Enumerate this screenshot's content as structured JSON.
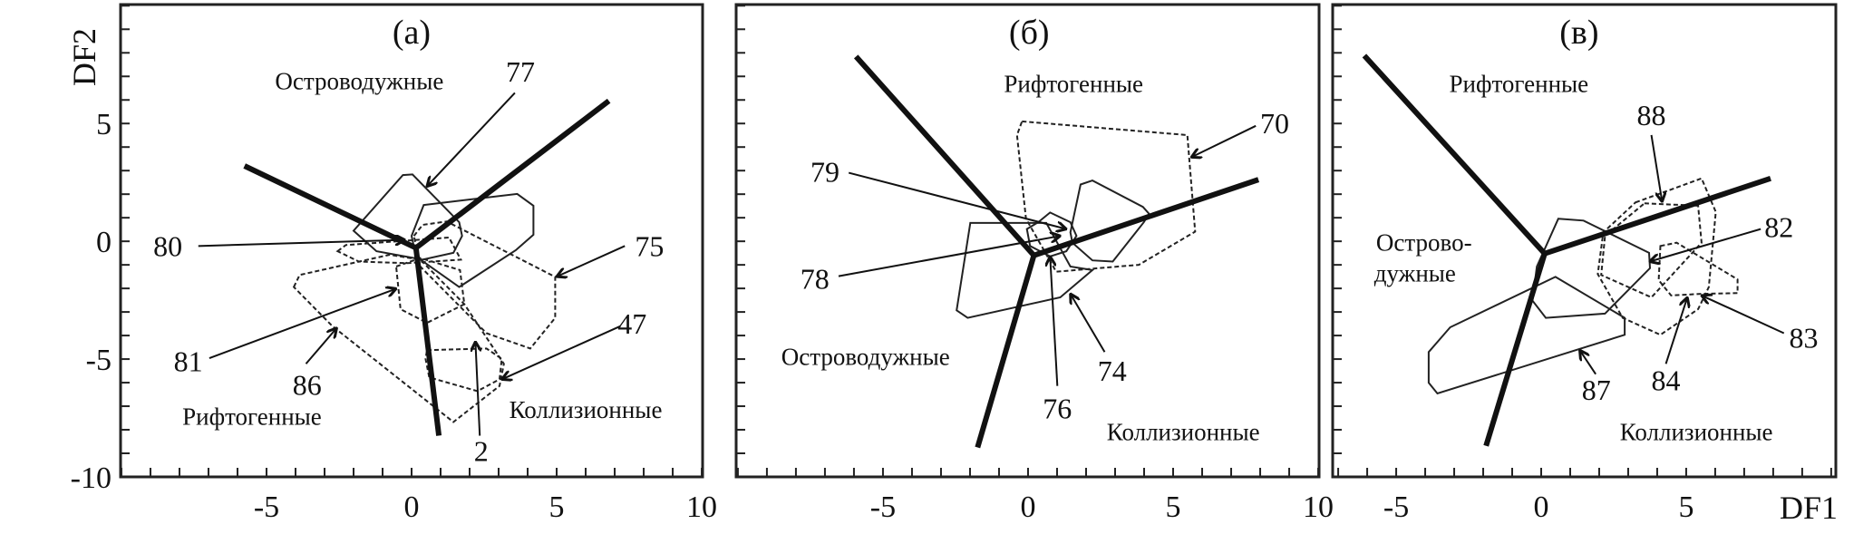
{
  "chart_data": [
    {
      "type": "scatter",
      "panel": "a",
      "title": "(a)",
      "xlabel": "",
      "ylabel": "DF2",
      "xlim": [
        -10.03,
        10.03
      ],
      "ylim": [
        -10,
        10.05
      ],
      "x_tick_labels": [
        {
          "value": -5,
          "text": "-5"
        },
        {
          "value": 0,
          "text": "0"
        },
        {
          "value": 5,
          "text": "5"
        },
        {
          "value": 10,
          "text": "10"
        }
      ],
      "y_tick_labels": [
        {
          "value": -10,
          "text": "-10"
        },
        {
          "value": -5,
          "text": "-5"
        },
        {
          "value": 0,
          "text": "0"
        },
        {
          "value": 5,
          "text": "5"
        }
      ],
      "boundaries": [
        [
          [
            -5.76,
            3.2
          ],
          [
            0.15,
            -0.28
          ],
          [
            6.8,
            5.96
          ]
        ],
        [
          [
            0.15,
            -0.28
          ],
          [
            0.94,
            -8.25
          ]
        ]
      ],
      "polygons": [
        {
          "id": "77",
          "style": "solid",
          "points": [
            [
              -2.0,
              0.45
            ],
            [
              -0.3,
              2.81
            ],
            [
              0.03,
              2.84
            ],
            [
              1.64,
              0.81
            ],
            [
              1.74,
              0.23
            ],
            [
              1.44,
              -0.49
            ],
            [
              0.38,
              -0.78
            ],
            [
              -1.21,
              -0.42
            ]
          ]
        },
        {
          "id": "77b",
          "style": "solid",
          "points": [
            [
              0.42,
              1.54
            ],
            [
              3.64,
              2.01
            ],
            [
              4.2,
              1.51
            ],
            [
              4.2,
              0.28
            ],
            [
              3.59,
              -0.38
            ],
            [
              1.64,
              -1.94
            ],
            [
              0.15,
              -0.64
            ],
            [
              0.0,
              0.23
            ]
          ]
        },
        {
          "id": "75",
          "style": "dashed",
          "points": [
            [
              0.08,
              0.23
            ],
            [
              0.38,
              0.7
            ],
            [
              1.21,
              0.84
            ],
            [
              4.95,
              -1.51
            ],
            [
              4.95,
              -3.25
            ],
            [
              4.09,
              -4.55
            ],
            [
              2.58,
              -3.9
            ],
            [
              0.3,
              -1.07
            ]
          ]
        },
        {
          "id": "86",
          "style": "dashed",
          "points": [
            [
              -4.06,
              -1.94
            ],
            [
              -3.86,
              -1.43
            ],
            [
              -0.76,
              -0.57
            ],
            [
              0.3,
              -0.78
            ],
            [
              1.82,
              -2.67
            ],
            [
              3.18,
              -5.2
            ],
            [
              3.03,
              -6.14
            ],
            [
              1.44,
              -7.67
            ],
            [
              -2.73,
              -3.6
            ]
          ]
        },
        {
          "id": "80",
          "style": "dashed",
          "points": [
            [
              -2.55,
              -0.42
            ],
            [
              -2.27,
              -0.16
            ],
            [
              1.29,
              0.16
            ],
            [
              1.7,
              -0.78
            ],
            [
              -0.15,
              -0.93
            ],
            [
              -1.82,
              -0.86
            ]
          ]
        },
        {
          "id": "81",
          "style": "dashed",
          "points": [
            [
              -0.53,
              -1.07
            ],
            [
              0.3,
              -0.71
            ],
            [
              1.67,
              -1.22
            ],
            [
              1.82,
              -2.67
            ],
            [
              0.53,
              -3.46
            ],
            [
              -0.38,
              -2.88
            ]
          ]
        },
        {
          "id": "2",
          "style": "dashed",
          "points": [
            [
              0.53,
              -4.62
            ],
            [
              2.58,
              -4.55
            ],
            [
              3.11,
              -4.99
            ],
            [
              3.03,
              -5.86
            ],
            [
              2.27,
              -6.36
            ],
            [
              0.61,
              -5.78
            ],
            [
              0.48,
              -4.99
            ]
          ]
        }
      ],
      "annotations": [
        {
          "label": "77",
          "label_pos": [
            3.75,
            7.2
          ],
          "arrow": [
            [
              3.56,
              6.3
            ],
            [
              0.53,
              2.33
            ]
          ]
        },
        {
          "label": "80",
          "label_pos": [
            -8.4,
            -0.2
          ],
          "arrow": [
            [
              -7.35,
              -0.2
            ],
            [
              -0.23,
              0.06
            ]
          ]
        },
        {
          "label": "75",
          "label_pos": [
            8.2,
            -0.2
          ],
          "arrow": [
            [
              7.35,
              -0.2
            ],
            [
              5.0,
              -1.5
            ]
          ]
        },
        {
          "label": "81",
          "label_pos": [
            -7.7,
            -5.1
          ],
          "arrow": [
            [
              -6.97,
              -4.96
            ],
            [
              -0.53,
              -2.01
            ]
          ]
        },
        {
          "label": "86",
          "label_pos": [
            -3.6,
            -6.1
          ],
          "arrow": [
            [
              -3.64,
              -5.2
            ],
            [
              -2.58,
              -3.68
            ]
          ]
        },
        {
          "label": "47",
          "label_pos": [
            7.6,
            -3.5
          ],
          "arrow": [
            [
              7.2,
              -3.6
            ],
            [
              3.11,
              -5.86
            ]
          ]
        },
        {
          "label": "2",
          "label_pos": [
            2.4,
            -8.9
          ],
          "arrow": [
            [
              2.35,
              -8.25
            ],
            [
              2.2,
              -4.26
            ]
          ]
        }
      ],
      "region_labels": [
        {
          "text": "Островодужные",
          "pos": [
            -1.8,
            6.8
          ]
        },
        {
          "text": "Рифтогенные",
          "pos": [
            -5.5,
            -7.45
          ]
        },
        {
          "text": "Коллизионные",
          "pos": [
            6.0,
            -7.15
          ]
        }
      ]
    },
    {
      "type": "scatter",
      "panel": "б",
      "title": "(б)",
      "xlabel": "",
      "ylabel": "",
      "xlim": [
        -10.06,
        10.03
      ],
      "ylim": [
        -10,
        10.05
      ],
      "x_tick_labels": [
        {
          "value": -5,
          "text": "-5"
        },
        {
          "value": 0,
          "text": "0"
        },
        {
          "value": 5,
          "text": "5"
        },
        {
          "value": 10,
          "text": "10"
        }
      ],
      "y_tick_labels": [],
      "boundaries": [
        [
          [
            -5.93,
            7.84
          ],
          [
            0.2,
            -0.6
          ],
          [
            7.94,
            2.62
          ]
        ],
        [
          [
            0.2,
            -0.6
          ],
          [
            -1.74,
            -8.75
          ]
        ]
      ],
      "polygons": [
        {
          "id": "70",
          "style": "dashed",
          "points": [
            [
              -0.21,
              5.09
            ],
            [
              5.49,
              4.51
            ],
            [
              5.76,
              0.41
            ],
            [
              3.82,
              -1.0
            ],
            [
              0.97,
              -1.29
            ],
            [
              -0.07,
              0.96
            ],
            [
              -0.38,
              4.51
            ]
          ]
        },
        {
          "id": "74",
          "style": "solid",
          "points": [
            [
              -1.99,
              0.78
            ],
            [
              0.63,
              0.78
            ],
            [
              1.46,
              -1.07
            ],
            [
              2.22,
              -1.22
            ],
            [
              1.11,
              -2.38
            ],
            [
              -2.08,
              -3.25
            ],
            [
              -2.46,
              -2.93
            ]
          ]
        },
        {
          "id": "78",
          "style": "solid",
          "points": [
            [
              1.81,
              2.41
            ],
            [
              2.22,
              2.58
            ],
            [
              3.96,
              1.46
            ],
            [
              4.17,
              1.17
            ],
            [
              3.99,
              0.81
            ],
            [
              2.92,
              -0.86
            ],
            [
              2.22,
              -0.81
            ],
            [
              1.53,
              -0.06
            ],
            [
              1.46,
              0.38
            ]
          ]
        },
        {
          "id": "76",
          "style": "solid",
          "points": [
            [
              0.35,
              0.81
            ],
            [
              0.76,
              1.22
            ],
            [
              1.46,
              0.81
            ],
            [
              1.67,
              0.23
            ],
            [
              1.32,
              -0.42
            ],
            [
              0.76,
              -0.64
            ],
            [
              0.07,
              -0.2
            ],
            [
              -0.04,
              0.52
            ]
          ]
        }
      ],
      "annotations": [
        {
          "label": "79",
          "label_pos": [
            -7.0,
            2.95
          ],
          "arrow": [
            [
              -6.18,
              2.91
            ],
            [
              1.32,
              0.52
            ]
          ]
        },
        {
          "label": "78",
          "label_pos": [
            -7.35,
            -1.6
          ],
          "arrow": [
            [
              -6.53,
              -1.48
            ],
            [
              1.11,
              0.23
            ]
          ]
        },
        {
          "label": "76",
          "label_pos": [
            1.01,
            -7.1
          ],
          "arrow": [
            [
              1.01,
              -6.14
            ],
            [
              0.76,
              -0.64
            ]
          ]
        },
        {
          "label": "74",
          "label_pos": [
            2.9,
            -5.5
          ],
          "arrow": [
            [
              2.64,
              -4.7
            ],
            [
              1.46,
              -2.23
            ]
          ]
        },
        {
          "label": "70",
          "label_pos": [
            8.5,
            5.0
          ],
          "arrow": [
            [
              7.85,
              4.9
            ],
            [
              5.63,
              3.57
            ]
          ]
        }
      ],
      "region_labels": [
        {
          "text": "Рифтогенные",
          "pos": [
            1.57,
            6.68
          ]
        },
        {
          "text": "Островодужные",
          "pos": [
            -5.6,
            -4.91
          ]
        },
        {
          "text": "Коллизионные",
          "pos": [
            5.35,
            -8.1
          ]
        }
      ]
    },
    {
      "type": "scatter",
      "panel": "в",
      "title": "(в)",
      "xlabel": "DF1",
      "ylabel": "",
      "xlim": [
        -7.19,
        10.16
      ],
      "ylim": [
        -10,
        10.05
      ],
      "x_tick_labels": [
        {
          "value": -5,
          "text": "-5"
        },
        {
          "value": 0,
          "text": "0"
        },
        {
          "value": 5,
          "text": "5"
        }
      ],
      "y_tick_labels": [],
      "boundaries": [
        [
          [
            -6.1,
            7.88
          ],
          [
            0.12,
            -0.52
          ],
          [
            7.91,
            2.67
          ]
        ],
        [
          [
            0.12,
            -0.52
          ],
          [
            -1.9,
            -8.68
          ]
        ]
      ],
      "polygons": [
        {
          "id": "c-upper",
          "style": "solid",
          "points": [
            [
              0.59,
              0.96
            ],
            [
              1.46,
              0.88
            ],
            [
              3.72,
              -0.49
            ],
            [
              3.75,
              -1.14
            ],
            [
              2.2,
              -3.07
            ],
            [
              0.16,
              -3.25
            ],
            [
              -0.3,
              -2.52
            ],
            [
              -0.15,
              -1.07
            ]
          ]
        },
        {
          "id": "87",
          "style": "solid",
          "points": [
            [
              0.49,
              -1.51
            ],
            [
              2.88,
              -3.25
            ],
            [
              2.88,
              -3.97
            ],
            [
              -3.58,
              -6.46
            ],
            [
              -3.88,
              -6.0
            ],
            [
              -3.88,
              -4.7
            ],
            [
              -3.14,
              -3.65
            ]
          ]
        },
        {
          "id": "88",
          "style": "dashed",
          "points": [
            [
              3.25,
              1.65
            ],
            [
              5.53,
              2.67
            ],
            [
              6.02,
              1.25
            ],
            [
              5.78,
              -1.94
            ],
            [
              5.41,
              -2.88
            ],
            [
              4.11,
              -3.97
            ],
            [
              2.81,
              -3.25
            ],
            [
              1.95,
              -1.39
            ],
            [
              2.14,
              0.38
            ]
          ]
        },
        {
          "id": "82",
          "style": "dashed",
          "points": [
            [
              3.56,
              1.61
            ],
            [
              5.41,
              1.51
            ],
            [
              5.53,
              -0.06
            ],
            [
              3.8,
              -2.38
            ],
            [
              2.07,
              -1.43
            ],
            [
              2.2,
              0.23
            ]
          ]
        },
        {
          "id": "83",
          "style": "dashed",
          "points": [
            [
              4.11,
              -0.2
            ],
            [
              4.67,
              -0.06
            ],
            [
              6.77,
              -1.62
            ],
            [
              6.77,
              -2.2
            ],
            [
              5.53,
              -2.23
            ],
            [
              4.48,
              -2.3
            ],
            [
              4.05,
              -1.65
            ]
          ]
        }
      ],
      "annotations": [
        {
          "label": "88",
          "label_pos": [
            3.8,
            5.35
          ],
          "arrow": [
            [
              3.8,
              4.51
            ],
            [
              4.17,
              1.68
            ]
          ]
        },
        {
          "label": "82",
          "label_pos": [
            8.2,
            0.6
          ],
          "arrow": [
            [
              7.57,
              0.52
            ],
            [
              3.74,
              -0.86
            ]
          ]
        },
        {
          "label": "83",
          "label_pos": [
            9.05,
            -4.1
          ],
          "arrow": [
            [
              8.37,
              -3.9
            ],
            [
              5.53,
              -2.3
            ]
          ]
        },
        {
          "label": "84",
          "label_pos": [
            4.3,
            -5.9
          ],
          "arrow": [
            [
              4.3,
              -5.2
            ],
            [
              5.04,
              -2.38
            ]
          ]
        },
        {
          "label": "87",
          "label_pos": [
            1.9,
            -6.3
          ],
          "arrow": [
            [
              1.88,
              -5.64
            ],
            [
              1.33,
              -4.62
            ]
          ]
        }
      ],
      "region_labels": [
        {
          "text": "Рифтогенные",
          "pos": [
            -0.77,
            6.68
          ]
        },
        {
          "text": "Острово-",
          "pos": [
            -4.04,
            -0.06
          ]
        },
        {
          "text": "дужные",
          "pos": [
            -4.35,
            -1.36
          ]
        },
        {
          "text": "Коллизионные",
          "pos": [
            5.35,
            -8.1
          ]
        }
      ]
    }
  ]
}
